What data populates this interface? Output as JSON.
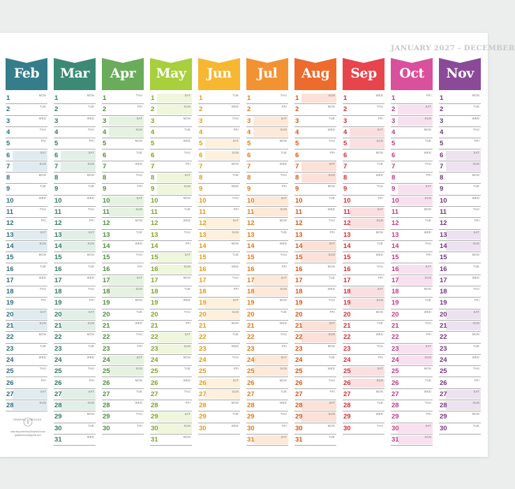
{
  "range_title": "JANUARY 2027 - DECEMBER",
  "brand": {
    "left": "GRAPHIC",
    "right": "CROCUS",
    "line1": "www.etsy.com/shop/GraphicCrocus",
    "line2": "graphiccrocus@gmail.com"
  },
  "months": [
    {
      "name": "Feb",
      "days": 28,
      "start": 1,
      "color": "#357d8a",
      "tint": "#e0ebef",
      "text": "#2e6f7b"
    },
    {
      "name": "Mar",
      "days": 31,
      "start": 1,
      "color": "#3c8a76",
      "tint": "#e1efe8",
      "text": "#2f7a66"
    },
    {
      "name": "Apr",
      "days": 30,
      "start": 4,
      "color": "#6aac5a",
      "tint": "#e6f2e1",
      "text": "#4f8f3f"
    },
    {
      "name": "May",
      "days": 31,
      "start": 6,
      "color": "#a8cf3c",
      "tint": "#eef6dc",
      "text": "#7ea328"
    },
    {
      "name": "Jun",
      "days": 30,
      "start": 2,
      "color": "#f7b731",
      "tint": "#fdf0dc",
      "text": "#e39a16"
    },
    {
      "name": "Jul",
      "days": 31,
      "start": 4,
      "color": "#f39233",
      "tint": "#fde9d9",
      "text": "#e07a1b"
    },
    {
      "name": "Aug",
      "days": 31,
      "start": 0,
      "color": "#ec6b2d",
      "tint": "#fbe1d8",
      "text": "#d85519"
    },
    {
      "name": "Sep",
      "days": 30,
      "start": 3,
      "color": "#e8444c",
      "tint": "#fadfe1",
      "text": "#d03038"
    },
    {
      "name": "Oct",
      "days": 31,
      "start": 5,
      "color": "#d9509c",
      "tint": "#f8e1ee",
      "text": "#bf3b85"
    },
    {
      "name": "Nov",
      "days": 30,
      "start": 1,
      "color": "#8a4a98",
      "tint": "#ece2f0",
      "text": "#70397d"
    }
  ],
  "weekdays": [
    "SUN",
    "MON",
    "TUE",
    "WED",
    "THU",
    "FRI",
    "SAT"
  ]
}
